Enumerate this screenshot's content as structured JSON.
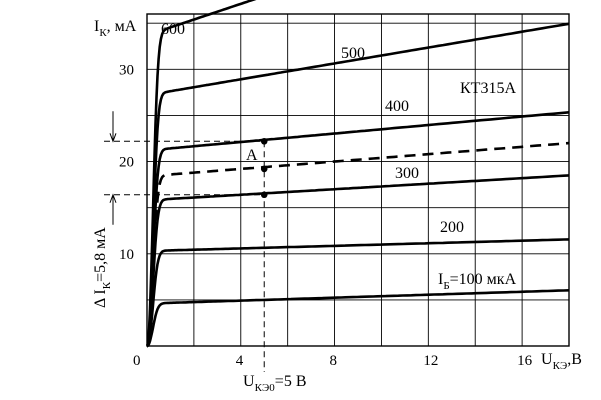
{
  "chart_data": {
    "type": "line",
    "device": "КТ315А",
    "y_axis": {
      "label": "I",
      "label_sub": "К",
      "label_unit": ", мА",
      "ticks": [
        "10",
        "20",
        "30"
      ],
      "range": [
        0,
        36
      ]
    },
    "x_axis": {
      "label": "U",
      "label_sub": "КЭ",
      "label_unit": ",В",
      "ticks": [
        "0",
        "4",
        "8",
        "12",
        "16"
      ],
      "range": [
        0,
        18
      ]
    },
    "grid": true,
    "series": [
      {
        "label": "I",
        "label_sub": "Б",
        "label_value": "=100 мкА",
        "ib": 100,
        "i_sat": 4.6,
        "slope": 0.08,
        "dashed": false
      },
      {
        "label": "200",
        "ib": 200,
        "i_sat": 10.3,
        "slope": 0.07,
        "dashed": false
      },
      {
        "label": "300",
        "ib": 300,
        "i_sat": 15.8,
        "slope": 0.15,
        "dashed": false
      },
      {
        "label": "",
        "ib": 350,
        "i_sat": 18.4,
        "slope": 0.2,
        "dashed": true
      },
      {
        "label": "400",
        "ib": 400,
        "i_sat": 21.2,
        "slope": 0.23,
        "dashed": false
      },
      {
        "label": "500",
        "ib": 500,
        "i_sat": 27.2,
        "slope": 0.43,
        "dashed": false
      },
      {
        "label": "600",
        "ib": 600,
        "i_sat": 33.7,
        "slope": 0.85,
        "dashed": false
      }
    ],
    "operating_point": {
      "label": "A",
      "u_ce": 5,
      "i_c": 19.2,
      "i_c_high": 22.2,
      "i_c_low": 16.4,
      "u_label": "U",
      "u_label_sub": "КЭ0",
      "u_label_value": "=5 В"
    },
    "delta_annotation": {
      "prefix": "Δ I",
      "sub": "К",
      "value": "=5,8 мА"
    }
  }
}
